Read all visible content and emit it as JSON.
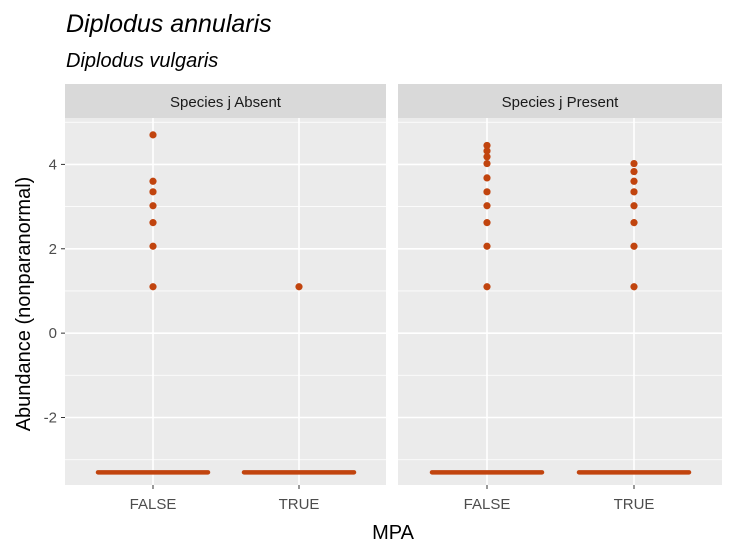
{
  "chart_data": {
    "type": "scatter",
    "title": "Diplodus annularis",
    "subtitle": "Diplodus vulgaris",
    "xlabel": "MPA",
    "ylabel": "Abundance (nonparanormal)",
    "categories": [
      "FALSE",
      "TRUE"
    ],
    "y_ticks": [
      -2,
      0,
      2,
      4
    ],
    "ylim": [
      -3.6,
      5.1
    ],
    "grid": true,
    "point_color": "#c1440e",
    "panel_bg": "#ebebeb",
    "strip_bg": "#d9d9d9",
    "facets": [
      {
        "label": "Species j Absent",
        "groups": [
          {
            "x": "FALSE",
            "y_points": [
              4.7,
              3.6,
              3.35,
              3.02,
              2.62,
              2.06,
              1.1
            ],
            "y_floor": -3.3
          },
          {
            "x": "TRUE",
            "y_points": [
              1.1
            ],
            "y_floor": -3.3
          }
        ]
      },
      {
        "label": "Species j Present",
        "groups": [
          {
            "x": "FALSE",
            "y_points": [
              4.45,
              4.32,
              4.18,
              4.02,
              3.68,
              3.35,
              3.02,
              2.62,
              2.06,
              1.1
            ],
            "y_floor": -3.3
          },
          {
            "x": "TRUE",
            "y_points": [
              4.02,
              3.83,
              3.6,
              3.35,
              3.02,
              2.62,
              2.06,
              1.1
            ],
            "y_floor": -3.3
          }
        ]
      }
    ]
  }
}
